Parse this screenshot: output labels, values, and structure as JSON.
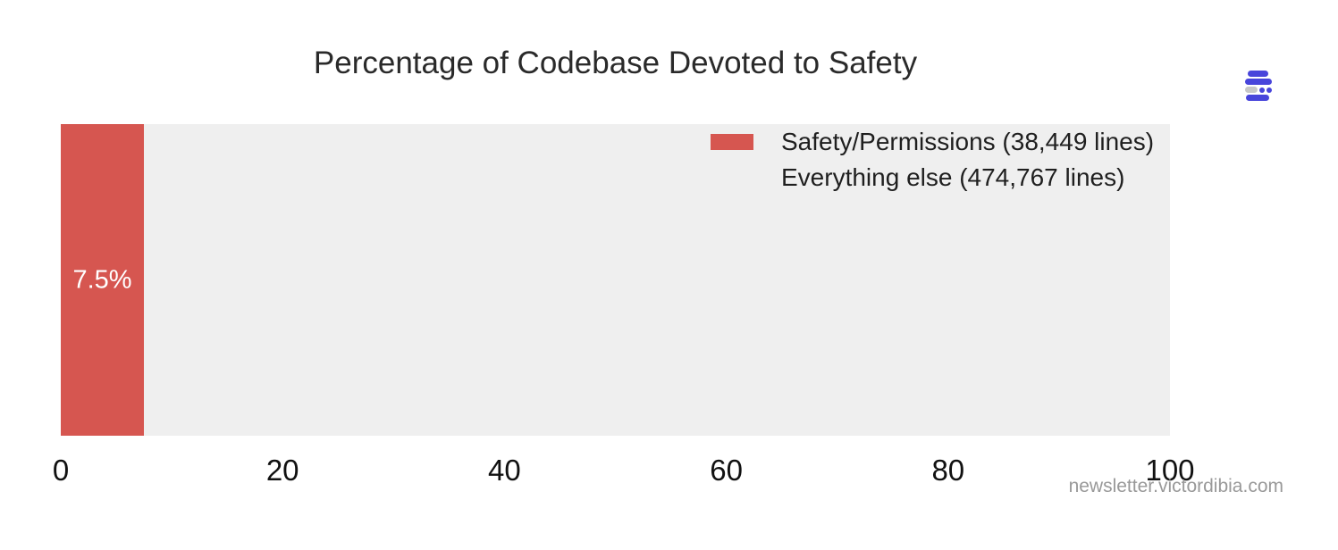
{
  "title": "Percentage of Codebase Devoted to Safety",
  "watermark": "newsletter.victordibia.com",
  "colors": {
    "safety_red": "#d65650",
    "everything_else_gray": "#efefef",
    "plot_background": "#efefef",
    "bar_label_text": "#ffffff",
    "title_text": "#2a2a2a",
    "tick_text": "#111111",
    "watermark_text": "#999999",
    "logo_blue": "#4845db",
    "logo_gray": "#c8c8c8"
  },
  "chart_data": {
    "type": "bar",
    "orientation": "horizontal",
    "stacked": true,
    "title": "Percentage of Codebase Devoted to Safety",
    "categories": [
      ""
    ],
    "series": [
      {
        "name": "Safety/Permissions (38,449 lines)",
        "values": [
          7.5
        ],
        "lines": 38449,
        "color": "#d65650"
      },
      {
        "name": "Everything else (474,767 lines)",
        "values": [
          92.5
        ],
        "lines": 474767,
        "color": "#efefef"
      }
    ],
    "bar_label": "7.5%",
    "xlabel": "",
    "ylabel": "",
    "xlim": [
      0,
      100
    ],
    "x_ticks": [
      "0",
      "20",
      "40",
      "60",
      "80",
      "100"
    ],
    "grid": false,
    "axis_lines": false,
    "legend_position": "inside-top-right"
  },
  "legend": {
    "items": [
      {
        "label": "Safety/Permissions (38,449 lines)",
        "color": "#d65650"
      },
      {
        "label": "Everything else (474,767 lines)",
        "color": "#efefef"
      }
    ]
  }
}
